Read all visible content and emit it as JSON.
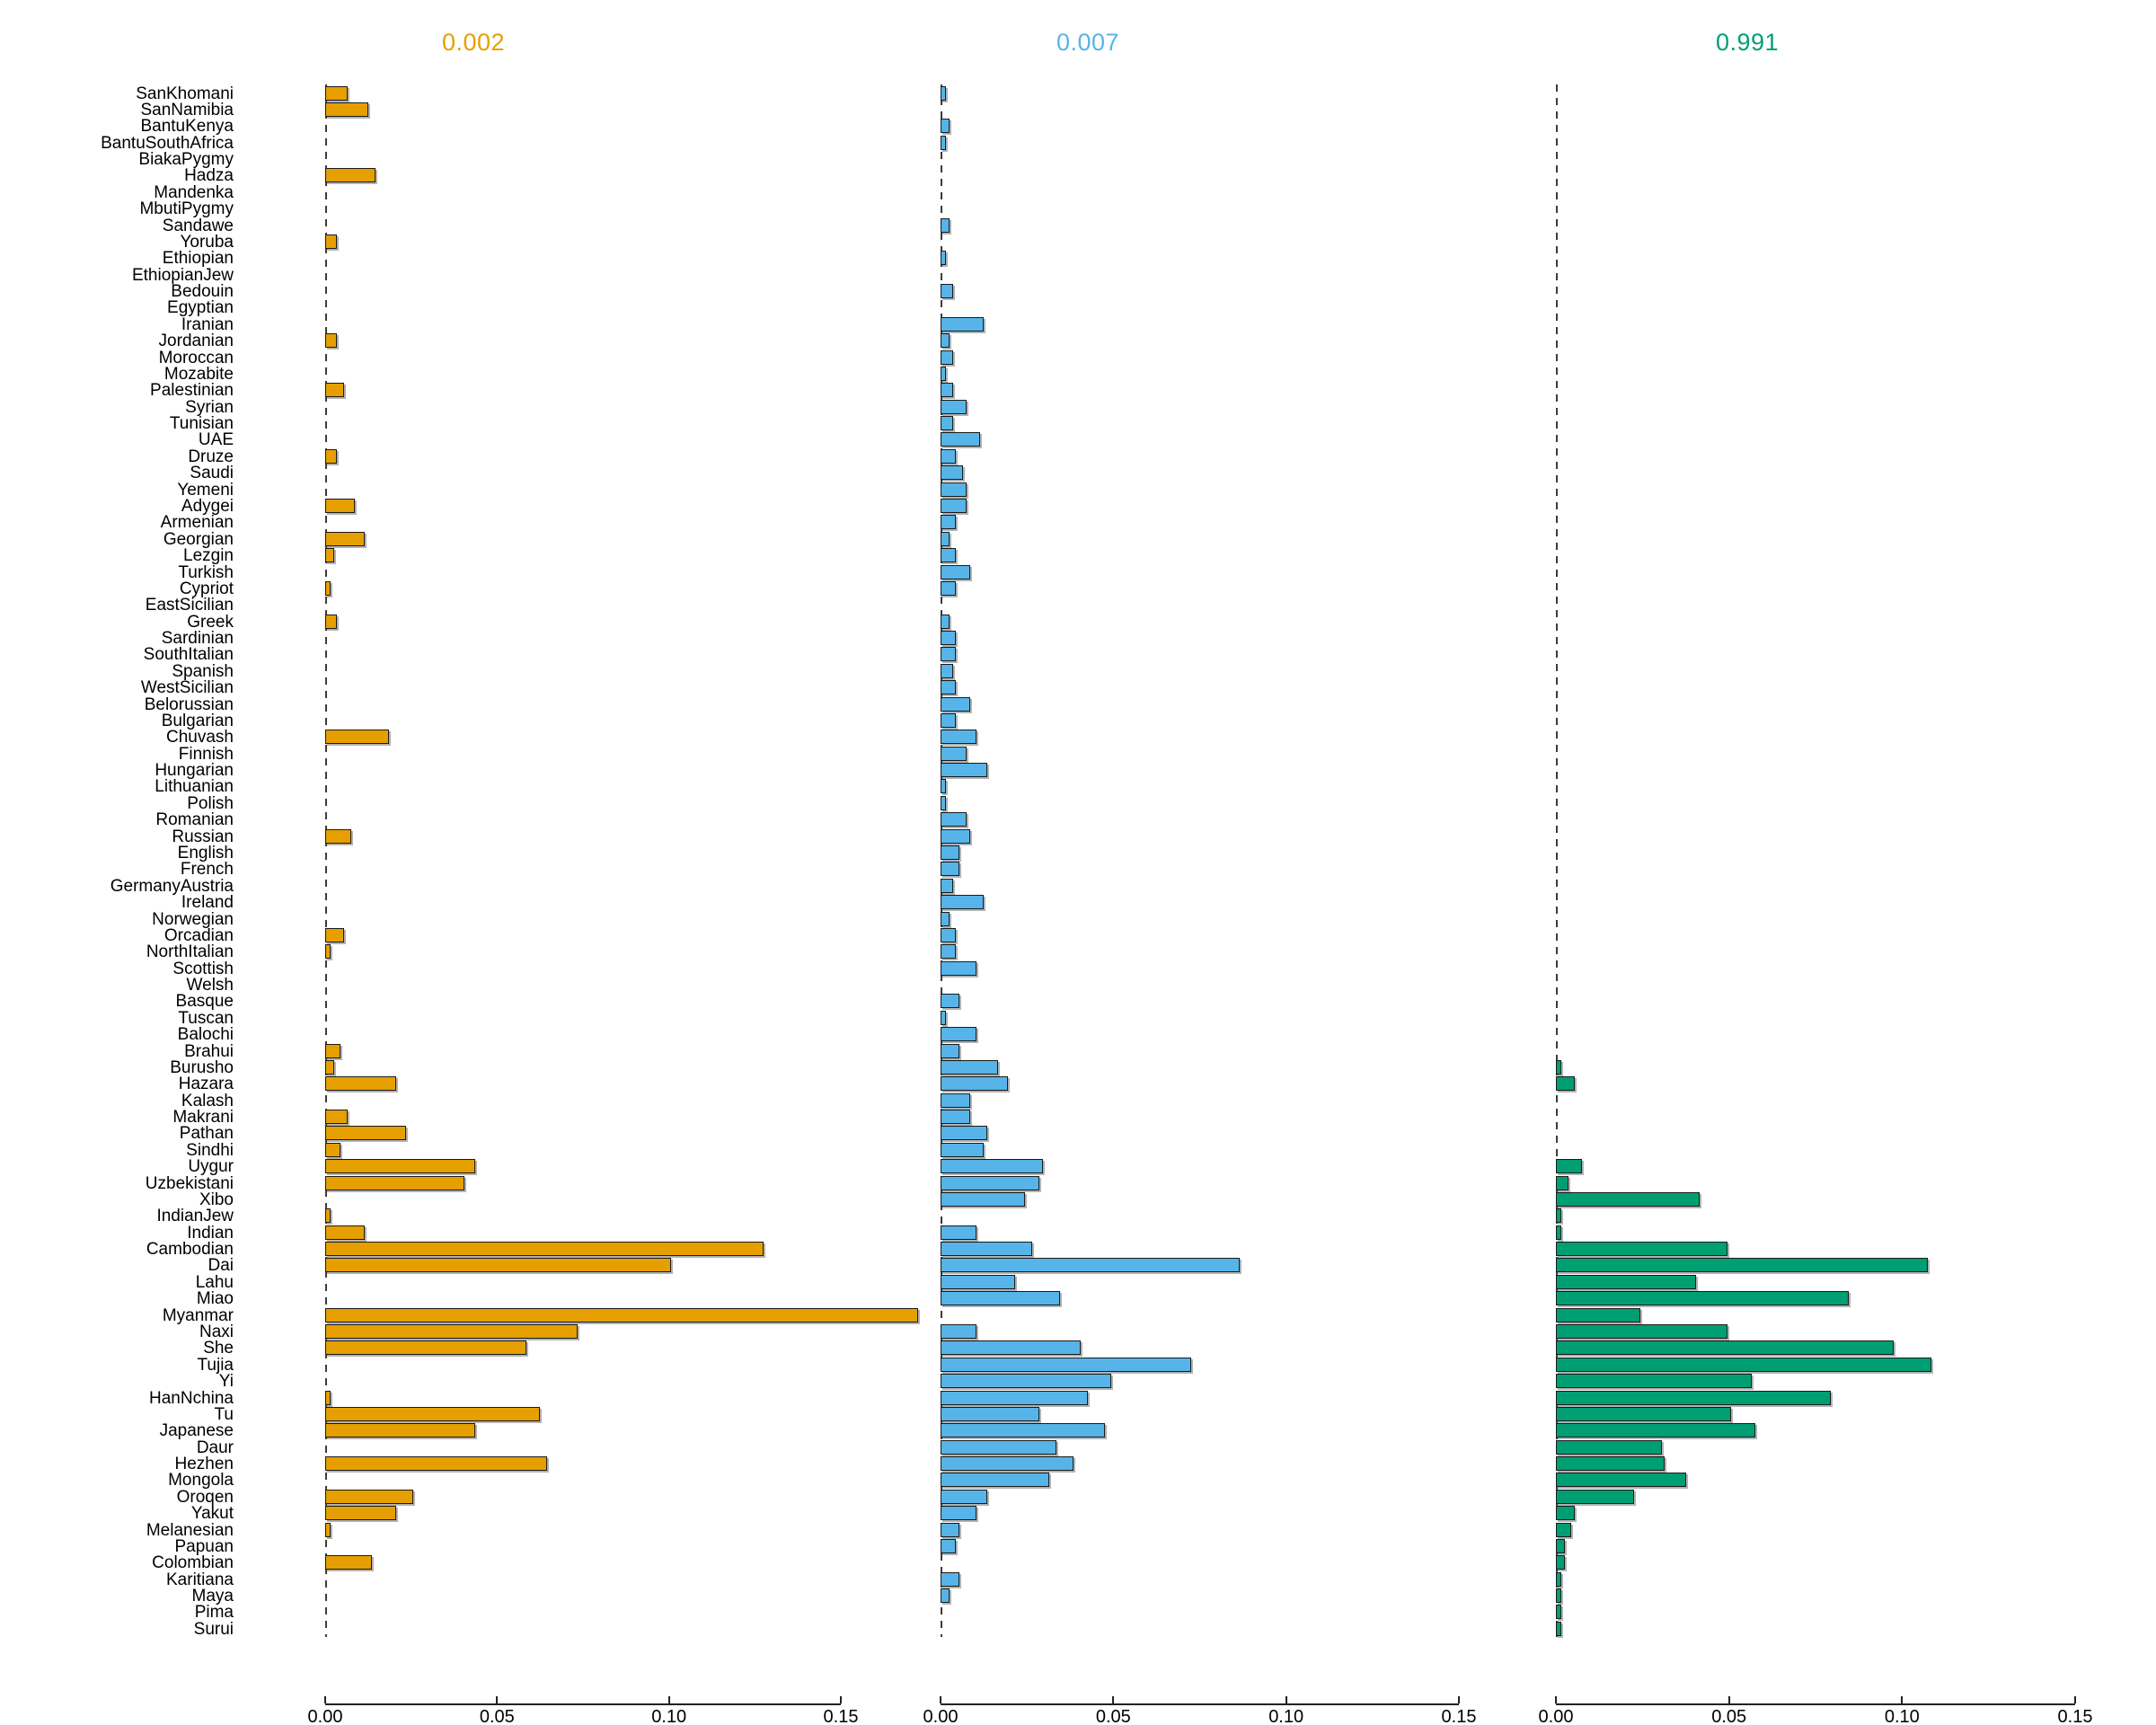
{
  "chart_data": {
    "type": "bar",
    "orientation": "horizontal",
    "grid": false,
    "legend_position": "none",
    "xlim": [
      0,
      0.15
    ],
    "x_ticks": [
      "0.00",
      "0.05",
      "0.10",
      "0.15"
    ],
    "x_tick_values": [
      0.0,
      0.05,
      0.1,
      0.15
    ],
    "bar_border_color": "#1a1a1a",
    "bar_shadow_color": "#b3b3b3",
    "categories": [
      "SanKhomani",
      "SanNamibia",
      "BantuKenya",
      "BantuSouthAfrica",
      "BiakaPygmy",
      "Hadza",
      "Mandenka",
      "MbutiPygmy",
      "Sandawe",
      "Yoruba",
      "Ethiopian",
      "EthiopianJew",
      "Bedouin",
      "Egyptian",
      "Iranian",
      "Jordanian",
      "Moroccan",
      "Mozabite",
      "Palestinian",
      "Syrian",
      "Tunisian",
      "UAE",
      "Druze",
      "Saudi",
      "Yemeni",
      "Adygei",
      "Armenian",
      "Georgian",
      "Lezgin",
      "Turkish",
      "Cypriot",
      "EastSicilian",
      "Greek",
      "Sardinian",
      "SouthItalian",
      "Spanish",
      "WestSicilian",
      "Belorussian",
      "Bulgarian",
      "Chuvash",
      "Finnish",
      "Hungarian",
      "Lithuanian",
      "Polish",
      "Romanian",
      "Russian",
      "English",
      "French",
      "GermanyAustria",
      "Ireland",
      "Norwegian",
      "Orcadian",
      "NorthItalian",
      "Scottish",
      "Welsh",
      "Basque",
      "Tuscan",
      "Balochi",
      "Brahui",
      "Burusho",
      "Hazara",
      "Kalash",
      "Makrani",
      "Pathan",
      "Sindhi",
      "Uygur",
      "Uzbekistani",
      "Xibo",
      "IndianJew",
      "Indian",
      "Cambodian",
      "Dai",
      "Lahu",
      "Miao",
      "Myanmar",
      "Naxi",
      "She",
      "Tujia",
      "Yi",
      "HanNchina",
      "Tu",
      "Japanese",
      "Daur",
      "Hezhen",
      "Mongola",
      "Oroqen",
      "Yakut",
      "Melanesian",
      "Papuan",
      "Colombian",
      "Karitiana",
      "Maya",
      "Pima",
      "Surui"
    ],
    "series": [
      {
        "name": "0.002",
        "color": "#E69F00",
        "values": [
          0.006,
          0.012,
          0,
          0,
          0,
          0.014,
          0,
          0,
          0,
          0.003,
          0,
          0,
          0,
          0,
          0,
          0.003,
          0,
          0,
          0.005,
          0,
          0,
          0,
          0.003,
          0,
          0,
          0.008,
          0,
          0.011,
          0.002,
          0,
          0.001,
          0,
          0.003,
          0,
          0,
          0,
          0,
          0,
          0,
          0.018,
          0,
          0,
          0,
          0,
          0,
          0.007,
          0,
          0,
          0,
          0,
          0,
          0.005,
          0.001,
          0,
          0,
          0,
          0,
          0,
          0.004,
          0.002,
          0.02,
          0,
          0.006,
          0.023,
          0.004,
          0.043,
          0.04,
          0,
          0.001,
          0.011,
          0.127,
          0.1,
          0,
          0,
          0.172,
          0.073,
          0.058,
          0,
          0,
          0.001,
          0.062,
          0.043,
          0,
          0.064,
          0,
          0.025,
          0.02,
          0.001,
          0,
          0.013,
          0,
          0,
          0,
          0
        ]
      },
      {
        "name": "0.007",
        "color": "#56B4E9",
        "values": [
          0.001,
          0,
          0.002,
          0.001,
          0,
          0,
          0,
          0,
          0.002,
          0,
          0.001,
          0,
          0.003,
          0,
          0.012,
          0.002,
          0.003,
          0.001,
          0.003,
          0.007,
          0.003,
          0.011,
          0.004,
          0.006,
          0.007,
          0.007,
          0.004,
          0.002,
          0.004,
          0.008,
          0.004,
          0,
          0.002,
          0.004,
          0.004,
          0.003,
          0.004,
          0.008,
          0.004,
          0.01,
          0.007,
          0.013,
          0.001,
          0.001,
          0.007,
          0.008,
          0.005,
          0.005,
          0.003,
          0.012,
          0.002,
          0.004,
          0.004,
          0.01,
          0,
          0.005,
          0.001,
          0.01,
          0.005,
          0.016,
          0.019,
          0.008,
          0.008,
          0.013,
          0.012,
          0.029,
          0.028,
          0.024,
          0,
          0.01,
          0.026,
          0.086,
          0.021,
          0.034,
          0,
          0.01,
          0.04,
          0.072,
          0.049,
          0.042,
          0.028,
          0.047,
          0.033,
          0.038,
          0.031,
          0.013,
          0.01,
          0.005,
          0.004,
          0,
          0.005,
          0.002,
          0,
          0
        ]
      },
      {
        "name": "0.991",
        "color": "#009E73",
        "values": [
          0,
          0,
          0,
          0,
          0,
          0,
          0,
          0,
          0,
          0,
          0,
          0,
          0,
          0,
          0,
          0,
          0,
          0,
          0,
          0,
          0,
          0,
          0,
          0,
          0,
          0,
          0,
          0,
          0,
          0,
          0,
          0,
          0,
          0,
          0,
          0,
          0,
          0,
          0,
          0,
          0,
          0,
          0,
          0,
          0,
          0,
          0,
          0,
          0,
          0,
          0,
          0,
          0,
          0,
          0,
          0,
          0,
          0,
          0,
          0.001,
          0.005,
          0,
          0,
          0,
          0,
          0.007,
          0.003,
          0.041,
          0.001,
          0.001,
          0.049,
          0.107,
          0.04,
          0.084,
          0.024,
          0.049,
          0.097,
          0.108,
          0.056,
          0.079,
          0.05,
          0.057,
          0.03,
          0.031,
          0.037,
          0.022,
          0.005,
          0.004,
          0.002,
          0.002,
          0.001,
          0.001,
          0.001,
          0.001
        ]
      }
    ]
  }
}
